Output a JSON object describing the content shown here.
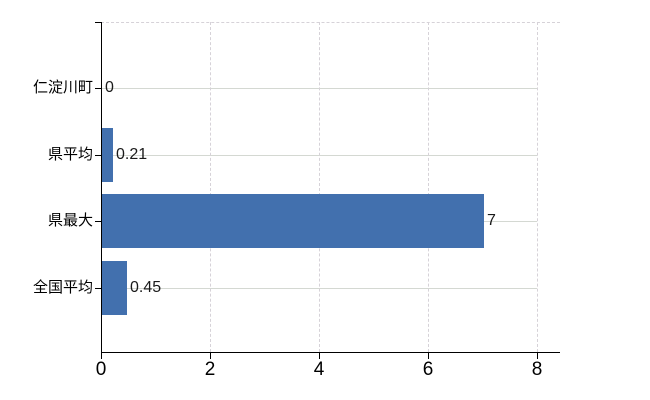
{
  "chart_data": {
    "type": "bar",
    "orientation": "horizontal",
    "title": "",
    "categories": [
      "仁淀川町",
      "県平均",
      "県最大",
      "全国平均"
    ],
    "values": [
      0,
      0.21,
      7,
      0.45
    ],
    "value_labels": [
      "0",
      "0.21",
      "7",
      "0.45"
    ],
    "xlim": [
      0,
      8
    ],
    "x_ticks": [
      0,
      2,
      4,
      6,
      8
    ],
    "x_tick_labels": [
      "0",
      "2",
      "4",
      "6",
      "8"
    ],
    "grid": "on",
    "legend": "none",
    "colors": {
      "bar": "#4270ae",
      "axis": "#000000",
      "category_gridline": "#d4d8d2",
      "value_gridline": "#d6d2d8",
      "background": "#ffffff",
      "text": "#000000"
    }
  }
}
